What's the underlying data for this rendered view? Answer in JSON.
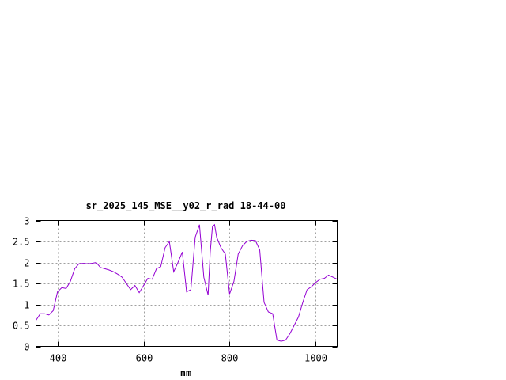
{
  "chart_data": {
    "type": "line",
    "title": "sr_2025_145_MSE__y02_r_rad 18-44-00",
    "xlabel": "nm",
    "ylabel": "",
    "xlim": [
      350,
      1050
    ],
    "ylim": [
      0,
      3
    ],
    "xticks": [
      400,
      600,
      800,
      1000
    ],
    "yticks": [
      0,
      0.5,
      1,
      1.5,
      2,
      2.5,
      3
    ],
    "grid": true,
    "line_color": "#9400d3",
    "series": [
      {
        "x": [
          350,
          360,
          370,
          380,
          390,
          400,
          410,
          420,
          430,
          440,
          450,
          460,
          470,
          480,
          490,
          500,
          510,
          520,
          530,
          540,
          550,
          560,
          570,
          580,
          590,
          600,
          610,
          620,
          630,
          640,
          650,
          660,
          670,
          680,
          690,
          700,
          710,
          720,
          730,
          740,
          750,
          755,
          760,
          765,
          770,
          780,
          790,
          800,
          810,
          820,
          830,
          840,
          850,
          860,
          870,
          880,
          890,
          900,
          910,
          920,
          930,
          940,
          950,
          960,
          970,
          980,
          990,
          1000,
          1010,
          1020,
          1030,
          1040,
          1050
        ],
        "y": [
          0.62,
          0.78,
          0.78,
          0.75,
          0.85,
          1.3,
          1.4,
          1.38,
          1.55,
          1.85,
          1.97,
          1.98,
          1.97,
          1.98,
          2.0,
          1.88,
          1.85,
          1.82,
          1.78,
          1.72,
          1.65,
          1.5,
          1.35,
          1.45,
          1.28,
          1.45,
          1.62,
          1.6,
          1.85,
          1.9,
          2.35,
          2.5,
          1.78,
          2.0,
          2.25,
          1.3,
          1.35,
          2.6,
          2.9,
          1.65,
          1.22,
          2.25,
          2.85,
          2.9,
          2.6,
          2.35,
          2.2,
          1.25,
          1.55,
          2.2,
          2.4,
          2.5,
          2.53,
          2.52,
          2.3,
          1.05,
          0.82,
          0.78,
          0.15,
          0.12,
          0.15,
          0.3,
          0.5,
          0.7,
          1.05,
          1.35,
          1.42,
          1.52,
          1.6,
          1.62,
          1.7,
          1.65,
          1.6
        ]
      }
    ]
  }
}
